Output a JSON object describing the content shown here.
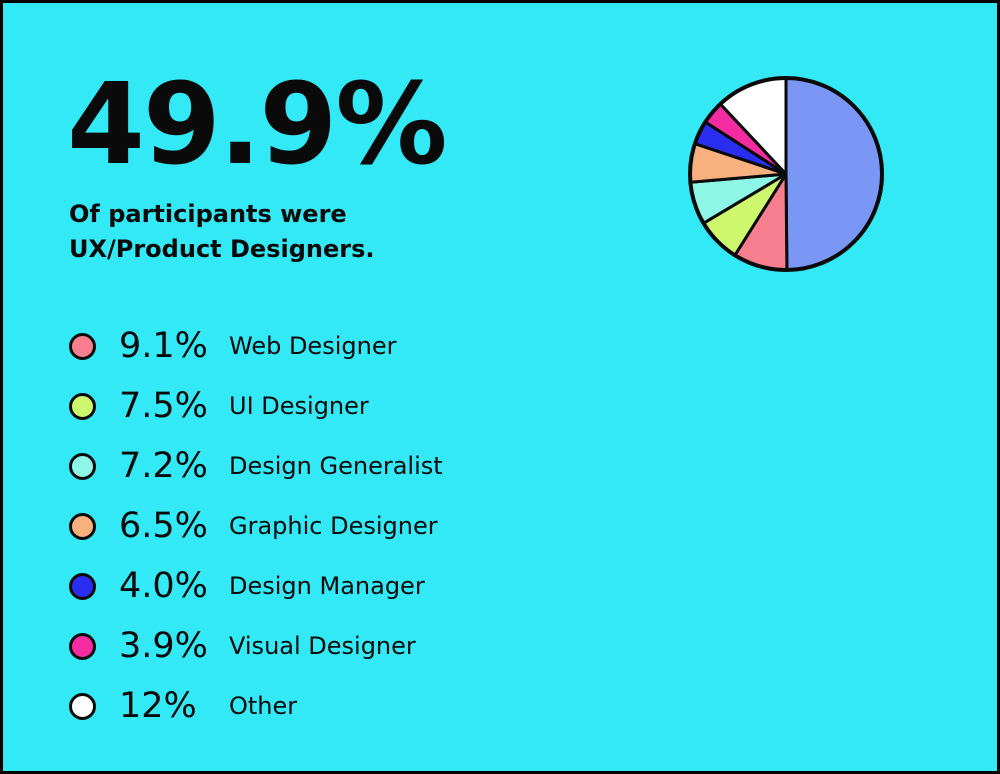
{
  "headline": {
    "value": "49.9%",
    "caption_line1": "Of participants were",
    "caption_line2": "UX/Product Designers."
  },
  "chart_data": {
    "type": "pie",
    "slices": [
      {
        "label": "UX/Product Designers",
        "value": 49.9,
        "display": "49.9%",
        "color": "#7b97f5",
        "in_legend": false
      },
      {
        "label": "Web Designer",
        "value": 9.1,
        "display": "9.1%",
        "color": "#f77e8f",
        "in_legend": true
      },
      {
        "label": "UI Designer",
        "value": 7.5,
        "display": "7.5%",
        "color": "#cdf76d",
        "in_legend": true
      },
      {
        "label": "Design Generalist",
        "value": 7.2,
        "display": "7.2%",
        "color": "#8ef6e6",
        "in_legend": true
      },
      {
        "label": "Graphic Designer",
        "value": 6.5,
        "display": "6.5%",
        "color": "#f7b07e",
        "in_legend": true
      },
      {
        "label": "Design Manager",
        "value": 4.0,
        "display": "4.0%",
        "color": "#2a2ef0",
        "in_legend": true
      },
      {
        "label": "Visual Designer",
        "value": 3.9,
        "display": "3.9%",
        "color": "#f52ba1",
        "in_legend": true
      },
      {
        "label": "Other",
        "value": 12,
        "display": "12%",
        "color": "#ffffff",
        "in_legend": true
      }
    ],
    "start": "top",
    "direction": "clockwise",
    "legend_position": "left"
  },
  "colors": {
    "background": "#33e9f5",
    "frame": "#000000",
    "text": "#0a0a0a",
    "outline": "#0a0a0a"
  }
}
